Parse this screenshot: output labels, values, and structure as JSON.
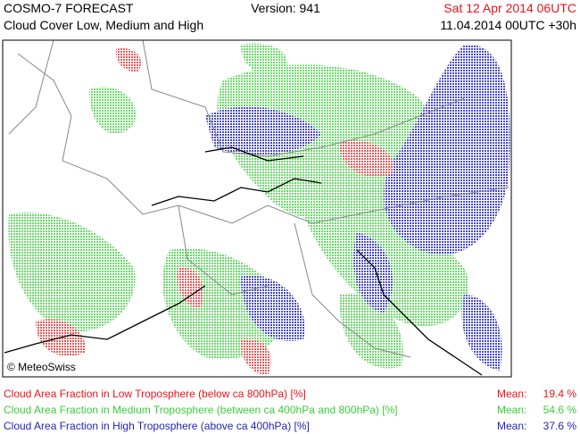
{
  "header": {
    "title": "COSMO-7 FORECAST",
    "subtitle": "Cloud Cover Low, Medium and High",
    "version": "Version: 941",
    "valid_time": "Sat 12 Apr 2014 06UTC",
    "valid_time_color": "#e8141c",
    "run": "11.04.2014 00UTC +30h"
  },
  "map": {
    "copyright": "© MeteoSwiss"
  },
  "legend": [
    {
      "label": "Cloud Area Fraction in Low Troposphere (below ca 800hPa) [%]",
      "mean_label": "Mean:",
      "mean": "19.4 %",
      "color": "#e8141c"
    },
    {
      "label": "Cloud Area Fraction in Medium Troposphere (between ca 400hPa and 800hPa) [%]",
      "mean_label": "Mean:",
      "mean": "54.6 %",
      "color": "#3ccc3c"
    },
    {
      "label": "Cloud Area Fraction in High Troposphere (above ca 400hPa) [%]",
      "mean_label": "Mean:",
      "mean": "37.6 %",
      "color": "#2424b4"
    }
  ]
}
